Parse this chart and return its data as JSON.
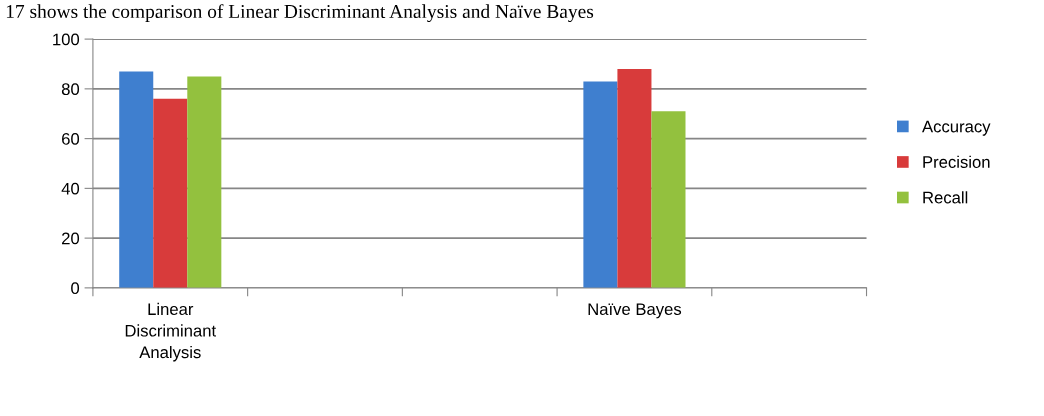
{
  "chart_data": {
    "type": "bar",
    "annotations": [
      "17 shows the comparison of Linear Discriminant Analysis and Naïve Bayes"
    ],
    "categories": [
      "Linear Discriminant Analysis",
      null,
      null,
      "Naïve Bayes",
      null
    ],
    "series": [
      {
        "name": "Accuracy",
        "color": "#3f7fcf",
        "values": [
          87,
          null,
          null,
          83,
          null
        ]
      },
      {
        "name": "Precision",
        "color": "#d83b3b",
        "values": [
          76,
          null,
          null,
          88,
          null
        ]
      },
      {
        "name": "Recall",
        "color": "#93c13e",
        "values": [
          85,
          null,
          null,
          71,
          null
        ]
      }
    ],
    "ylim": [
      0,
      100
    ],
    "yticks": [
      0,
      20,
      40,
      60,
      80,
      100
    ],
    "grid": "y",
    "legend": "right"
  }
}
